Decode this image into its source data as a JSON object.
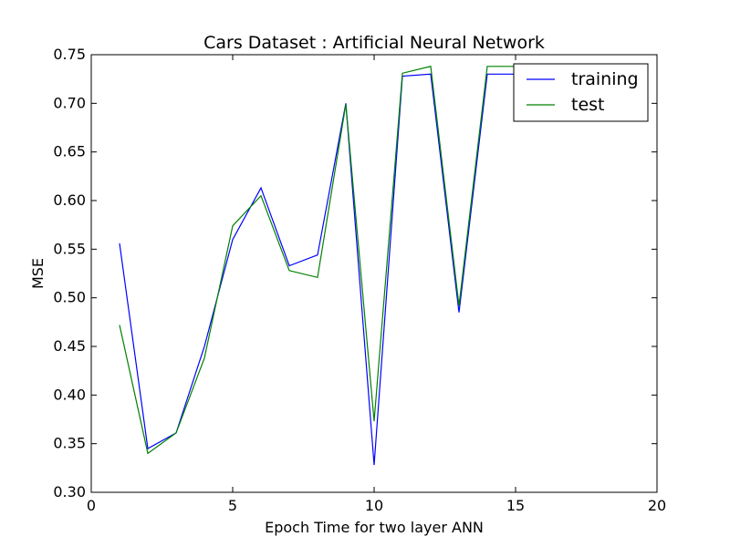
{
  "chart_data": {
    "type": "line",
    "title": "Cars Dataset : Artificial Neural Network",
    "xlabel": "Epoch Time for two layer ANN",
    "ylabel": "MSE",
    "xlim": [
      0,
      20
    ],
    "ylim": [
      0.3,
      0.75
    ],
    "xticks": [
      0,
      5,
      10,
      15,
      20
    ],
    "xtick_labels": [
      "0",
      "5",
      "10",
      "15",
      "20"
    ],
    "yticks": [
      0.3,
      0.35,
      0.4,
      0.45,
      0.5,
      0.55,
      0.6,
      0.65,
      0.7,
      0.75
    ],
    "ytick_labels": [
      "0.30",
      "0.35",
      "0.40",
      "0.45",
      "0.50",
      "0.55",
      "0.60",
      "0.65",
      "0.70",
      "0.75"
    ],
    "grid": false,
    "legend_position": "top-right",
    "x": [
      1,
      2,
      3,
      4,
      5,
      6,
      7,
      8,
      9,
      10,
      11,
      12,
      13,
      14,
      15,
      16
    ],
    "series": [
      {
        "name": "training",
        "color": "#0000ff",
        "values": [
          0.556,
          0.345,
          0.361,
          0.45,
          0.56,
          0.613,
          0.533,
          0.544,
          0.7,
          0.328,
          0.728,
          0.73,
          0.485,
          0.73,
          0.73,
          0.73
        ]
      },
      {
        "name": "test",
        "color": "#008000",
        "values": [
          0.472,
          0.34,
          0.361,
          0.438,
          0.574,
          0.605,
          0.528,
          0.521,
          0.699,
          0.373,
          0.731,
          0.738,
          0.492,
          0.738,
          0.738,
          0.738
        ]
      }
    ]
  }
}
